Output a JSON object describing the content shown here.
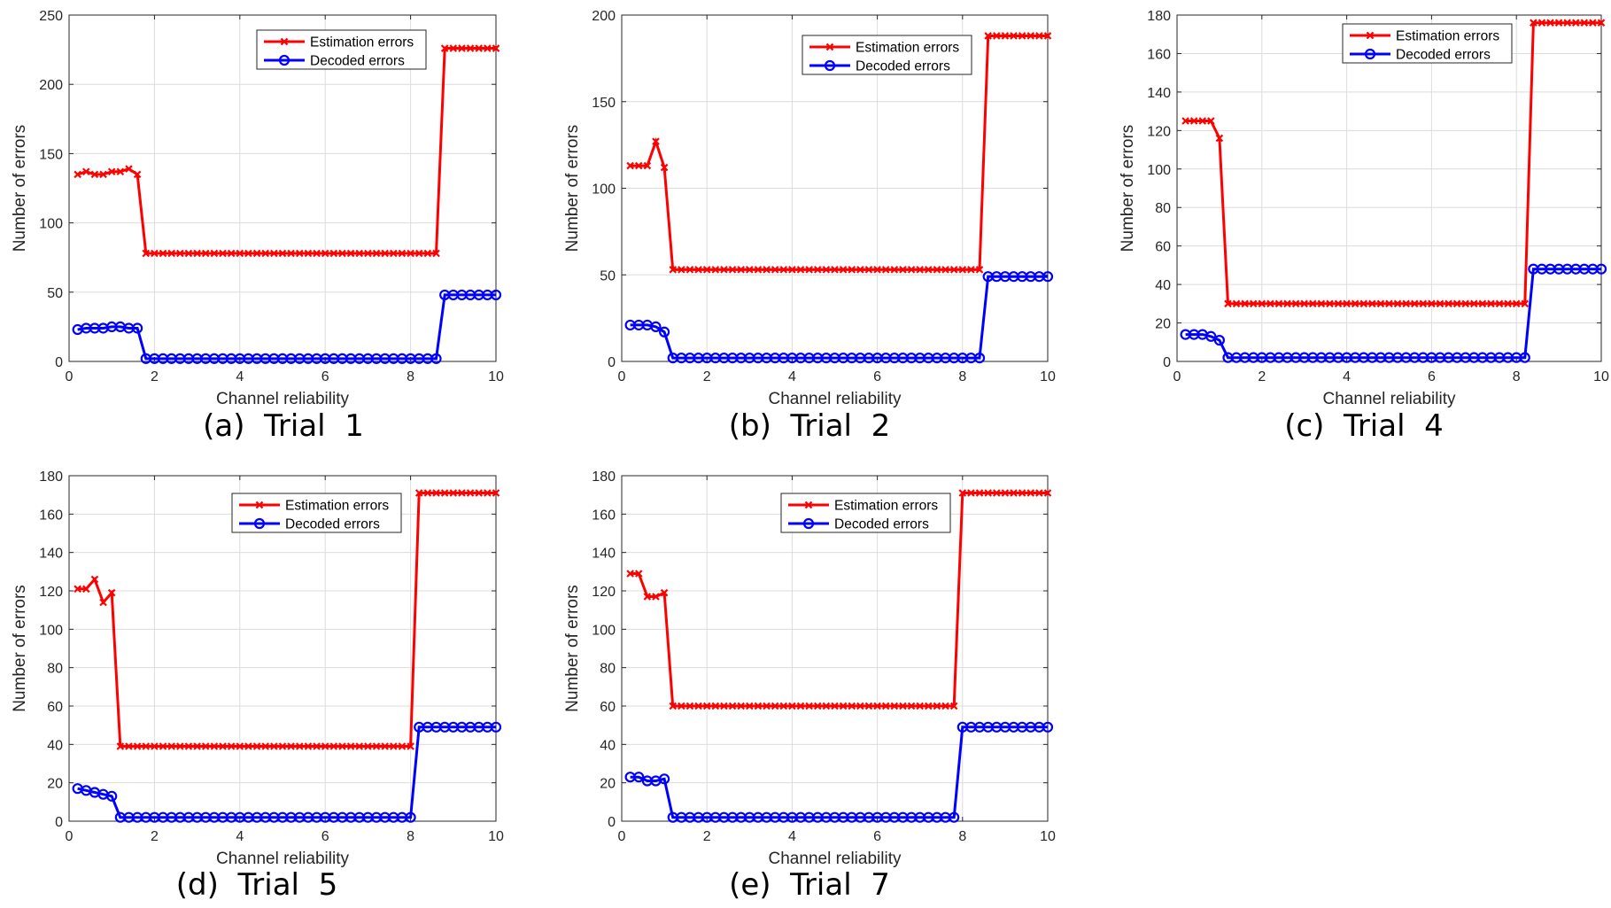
{
  "chart_data": [
    {
      "type": "line",
      "caption": "(a)  Trial  1",
      "xlabel": "Channel reliability",
      "ylabel": "Number of errors",
      "xlim": [
        0,
        10
      ],
      "ylim": [
        0,
        250
      ],
      "xticks": [
        0,
        2,
        4,
        6,
        8,
        10
      ],
      "yticks": [
        0,
        50,
        100,
        150,
        200,
        250
      ],
      "grid": true,
      "legend": "top-right",
      "series": [
        {
          "name": "Estimation errors",
          "color": "#ff0000",
          "marker": "x",
          "x": [
            0.2,
            0.4,
            0.6,
            0.8,
            1.0,
            1.2,
            1.4,
            1.6,
            1.8,
            8.6,
            8.8,
            10.0
          ],
          "y": [
            135,
            137,
            135,
            135,
            137,
            137,
            139,
            135,
            78,
            78,
            226,
            226
          ]
        },
        {
          "name": "Decoded errors",
          "color": "#0000ff",
          "marker": "o",
          "x": [
            0.2,
            0.4,
            0.6,
            0.8,
            1.0,
            1.2,
            1.4,
            1.6,
            1.8,
            8.6,
            8.8,
            10.0
          ],
          "y": [
            23,
            24,
            24,
            24,
            25,
            25,
            24,
            24,
            2,
            2,
            48,
            48
          ]
        }
      ]
    },
    {
      "type": "line",
      "caption": "(b)  Trial  2",
      "xlabel": "Channel reliability",
      "ylabel": "Number of errors",
      "xlim": [
        0,
        10
      ],
      "ylim": [
        0,
        200
      ],
      "xticks": [
        0,
        2,
        4,
        6,
        8,
        10
      ],
      "yticks": [
        0,
        50,
        100,
        150,
        200
      ],
      "grid": true,
      "legend": "top-right",
      "series": [
        {
          "name": "Estimation errors",
          "color": "#ff0000",
          "marker": "x",
          "x": [
            0.2,
            0.4,
            0.6,
            0.8,
            1.0,
            1.2,
            8.4,
            8.6,
            10.0
          ],
          "y": [
            113,
            113,
            113,
            127,
            112,
            53,
            53,
            188,
            188
          ]
        },
        {
          "name": "Decoded errors",
          "color": "#0000ff",
          "marker": "o",
          "x": [
            0.2,
            0.4,
            0.6,
            0.8,
            1.0,
            1.2,
            8.4,
            8.6,
            10.0
          ],
          "y": [
            21,
            21,
            21,
            20,
            17,
            2,
            2,
            49,
            49
          ]
        }
      ]
    },
    {
      "type": "line",
      "caption": "(c)  Trial  4",
      "xlabel": "Channel reliability",
      "ylabel": "Number of errors",
      "xlim": [
        0,
        10
      ],
      "ylim": [
        0,
        180
      ],
      "xticks": [
        0,
        2,
        4,
        6,
        8,
        10
      ],
      "yticks": [
        0,
        20,
        40,
        60,
        80,
        100,
        120,
        140,
        160,
        180
      ],
      "grid": true,
      "legend": "top-right",
      "series": [
        {
          "name": "Estimation errors",
          "color": "#ff0000",
          "marker": "x",
          "x": [
            0.2,
            0.4,
            0.6,
            0.8,
            1.0,
            1.2,
            8.2,
            8.4,
            10.0
          ],
          "y": [
            125,
            125,
            125,
            125,
            116,
            30,
            30,
            176,
            176
          ]
        },
        {
          "name": "Decoded errors",
          "color": "#0000ff",
          "marker": "o",
          "x": [
            0.2,
            0.4,
            0.6,
            0.8,
            1.0,
            1.2,
            8.2,
            8.4,
            10.0
          ],
          "y": [
            14,
            14,
            14,
            13,
            11,
            2,
            2,
            48,
            48
          ]
        }
      ]
    },
    {
      "type": "line",
      "caption": "(d)  Trial  5",
      "xlabel": "Channel reliability",
      "ylabel": "Number of errors",
      "xlim": [
        0,
        10
      ],
      "ylim": [
        0,
        180
      ],
      "xticks": [
        0,
        2,
        4,
        6,
        8,
        10
      ],
      "yticks": [
        0,
        20,
        40,
        60,
        80,
        100,
        120,
        140,
        160,
        180
      ],
      "grid": true,
      "legend": "top-right",
      "series": [
        {
          "name": "Estimation errors",
          "color": "#ff0000",
          "marker": "x",
          "x": [
            0.2,
            0.4,
            0.6,
            0.8,
            1.0,
            1.2,
            8.0,
            8.2,
            10.0
          ],
          "y": [
            121,
            121,
            126,
            114,
            119,
            39,
            39,
            171,
            171
          ]
        },
        {
          "name": "Decoded errors",
          "color": "#0000ff",
          "marker": "o",
          "x": [
            0.2,
            0.4,
            0.6,
            0.8,
            1.0,
            1.2,
            8.0,
            8.2,
            10.0
          ],
          "y": [
            17,
            16,
            15,
            14,
            13,
            2,
            2,
            49,
            49
          ]
        }
      ]
    },
    {
      "type": "line",
      "caption": "(e)  Trial  7",
      "xlabel": "Channel reliability",
      "ylabel": "Number of errors",
      "xlim": [
        0,
        10
      ],
      "ylim": [
        0,
        180
      ],
      "xticks": [
        0,
        2,
        4,
        6,
        8,
        10
      ],
      "yticks": [
        0,
        20,
        40,
        60,
        80,
        100,
        120,
        140,
        160,
        180
      ],
      "grid": true,
      "legend": "top-right",
      "series": [
        {
          "name": "Estimation errors",
          "color": "#ff0000",
          "marker": "x",
          "x": [
            0.2,
            0.4,
            0.6,
            0.8,
            1.0,
            1.2,
            7.8,
            8.0,
            10.0
          ],
          "y": [
            129,
            129,
            117,
            117,
            119,
            60,
            60,
            171,
            171
          ]
        },
        {
          "name": "Decoded errors",
          "color": "#0000ff",
          "marker": "o",
          "x": [
            0.2,
            0.4,
            0.6,
            0.8,
            1.0,
            1.2,
            7.8,
            8.0,
            10.0
          ],
          "y": [
            23,
            23,
            21,
            21,
            22,
            2,
            2,
            49,
            49
          ]
        }
      ]
    }
  ]
}
